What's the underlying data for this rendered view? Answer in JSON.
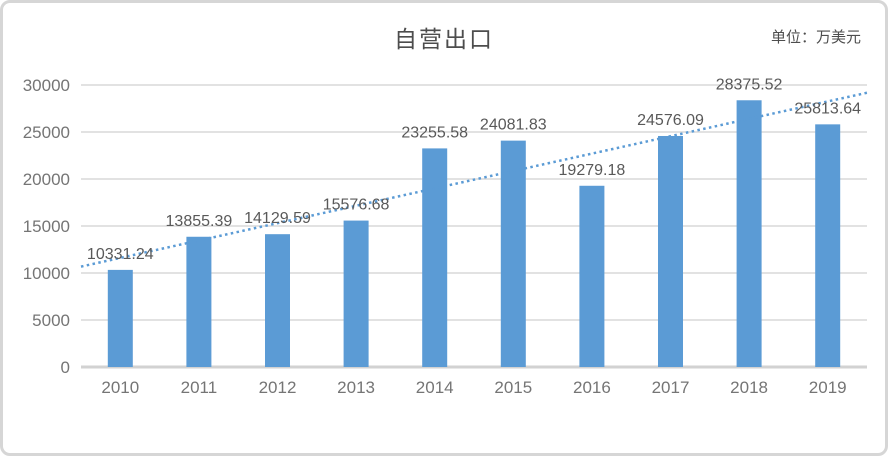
{
  "header": {
    "title": "自营出口",
    "unit_label": "单位：万美元"
  },
  "chart_data": {
    "type": "bar",
    "title": "自营出口",
    "unit": "单位：万美元",
    "categories": [
      "2010",
      "2011",
      "2012",
      "2013",
      "2014",
      "2015",
      "2016",
      "2017",
      "2018",
      "2019"
    ],
    "series": [
      {
        "name": "自营出口",
        "values": [
          10331.24,
          13855.39,
          14129.59,
          15576.68,
          23255.58,
          24081.83,
          19279.18,
          24576.09,
          28375.52,
          25813.64
        ]
      }
    ],
    "data_labels": [
      "10331.24",
      "13855.39",
      "14129.59",
      "15576.68",
      "23255.58",
      "24081.83",
      "19279.18",
      "24576.09",
      "28375.52",
      "25813.64"
    ],
    "y_ticks": [
      0,
      5000,
      10000,
      15000,
      20000,
      25000,
      30000
    ],
    "ylim": [
      0,
      30000
    ],
    "grid": true,
    "legend": "none",
    "trendline": {
      "type": "linear",
      "style": "dotted"
    },
    "colors": {
      "bar": "#5b9bd5",
      "trend": "#5b9bd5",
      "grid": "#d9d9d9",
      "axis": "#d2d2d2",
      "data_label": "#595959",
      "tick_label": "#757575",
      "title": "#4d4d4d",
      "frame": "#d6d6d6"
    }
  }
}
